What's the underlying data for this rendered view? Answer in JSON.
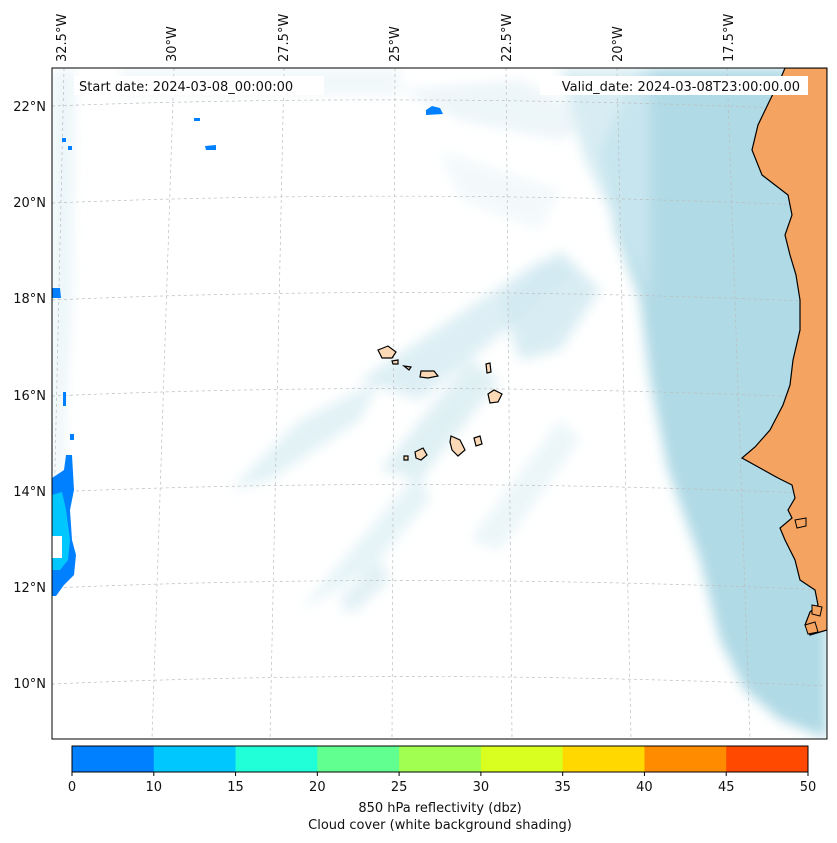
{
  "map": {
    "start_label": "Start date: 2024-03-08_00:00:00",
    "valid_label": "Valid_date: 2024-03-08T23:00:00.00",
    "lon_labels": [
      "32.5°W",
      "30°W",
      "27.5°W",
      "25°W",
      "22.5°W",
      "20°W",
      "17.5°W"
    ],
    "lat_labels": [
      "22°N",
      "20°N",
      "18°N",
      "16°N",
      "14°N",
      "12°N",
      "10°N"
    ]
  },
  "colorbar": {
    "ticks": [
      "0",
      "10",
      "15",
      "20",
      "25",
      "30",
      "35",
      "40",
      "45",
      "50"
    ],
    "colors": [
      "#0080ff",
      "#00c8ff",
      "#20ffd8",
      "#60ff90",
      "#a0ff50",
      "#d8ff20",
      "#ffd800",
      "#ff8c00",
      "#ff4800"
    ],
    "label": "850 hPa reflectivity (dbz)",
    "sublabel": "Cloud cover (white background shading)"
  },
  "style": {
    "land": "#f4a460",
    "cloud": "#b0dbe6",
    "reflectivity_low": "#0080ff"
  }
}
